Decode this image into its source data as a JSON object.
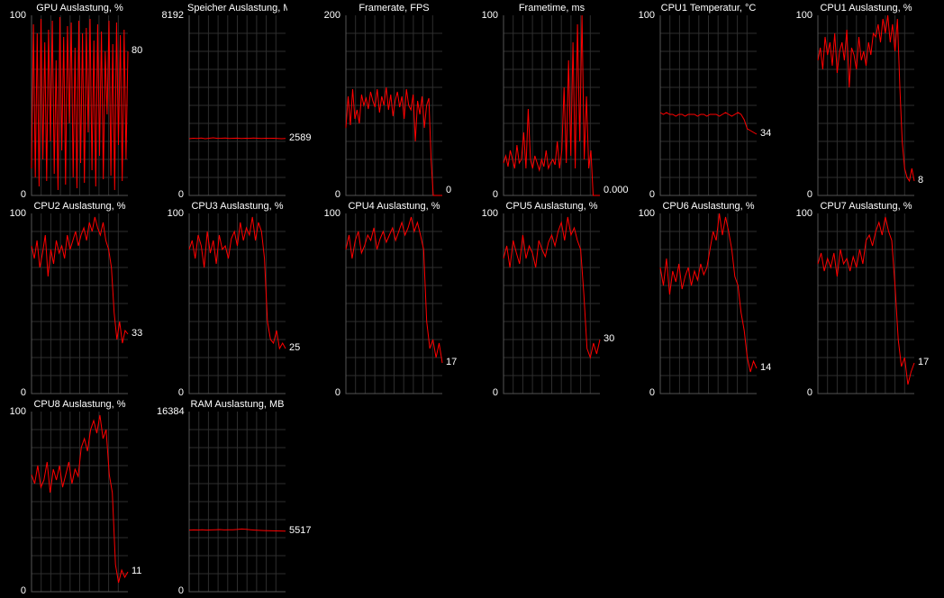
{
  "chart_data": [
    {
      "type": "line",
      "title": "GPU Auslastung, %",
      "ylim": [
        0,
        100
      ],
      "ymax_label": "100",
      "ymin_label": "0",
      "current": "80",
      "color": "#ff0000",
      "grid": true,
      "values": [
        15,
        95,
        10,
        90,
        5,
        98,
        20,
        85,
        8,
        92,
        30,
        97,
        12,
        75,
        3,
        99,
        25,
        88,
        6,
        94,
        40,
        96,
        10,
        82,
        4,
        97,
        18,
        90,
        7,
        93,
        35,
        98,
        14,
        86,
        5,
        95,
        22,
        91,
        9,
        80,
        45,
        97,
        11,
        84,
        3,
        96,
        28,
        89,
        8,
        92,
        20,
        80
      ]
    },
    {
      "type": "line",
      "title": "Speicher Auslastung, MB",
      "ylim": [
        0,
        8192
      ],
      "ymax_label": "8192",
      "ymin_label": "0",
      "current": "2589",
      "color": "#ff0000",
      "grid": true,
      "values": [
        2580,
        2600,
        2590,
        2610,
        2580,
        2600,
        2620,
        2595,
        2600,
        2610,
        2590,
        2600,
        2605,
        2590,
        2600,
        2595,
        2610,
        2600,
        2590,
        2600,
        2595,
        2600,
        2590,
        2580,
        2589
      ]
    },
    {
      "type": "line",
      "title": "Framerate, FPS",
      "ylim": [
        0,
        200
      ],
      "ymax_label": "200",
      "ymin_label": "0",
      "current": "0",
      "color": "#ff0000",
      "grid": true,
      "values": [
        75,
        110,
        78,
        118,
        85,
        95,
        80,
        112,
        100,
        108,
        96,
        115,
        105,
        98,
        118,
        92,
        110,
        100,
        120,
        95,
        112,
        88,
        105,
        115,
        98,
        110,
        85,
        118,
        100,
        95,
        112,
        60,
        105,
        90,
        110,
        75,
        100,
        108,
        40,
        0,
        0,
        0,
        0,
        0
      ]
    },
    {
      "type": "line",
      "title": "Frametime, ms",
      "ylim": [
        0,
        100
      ],
      "ymax_label": "100",
      "ymin_label": "0",
      "current": "0.000",
      "color": "#ff0000",
      "grid": true,
      "values": [
        18,
        22,
        16,
        25,
        20,
        15,
        28,
        18,
        20,
        35,
        15,
        48,
        20,
        15,
        22,
        18,
        14,
        20,
        16,
        25,
        15,
        18,
        20,
        17,
        30,
        15,
        25,
        60,
        18,
        75,
        22,
        85,
        15,
        95,
        30,
        100,
        20,
        55,
        15,
        25,
        0,
        0,
        0,
        0
      ]
    },
    {
      "type": "line",
      "title": "CPU1 Temperatur, °C",
      "ylim": [
        0,
        100
      ],
      "ymax_label": "100",
      "ymin_label": "0",
      "current": "34",
      "color": "#ff0000",
      "grid": true,
      "values": [
        46,
        45,
        46,
        45,
        45,
        44,
        45,
        45,
        44,
        45,
        45,
        45,
        44,
        45,
        45,
        44,
        45,
        45,
        45,
        44,
        45,
        46,
        45,
        44,
        45,
        46,
        45,
        42,
        37,
        36,
        35,
        34
      ]
    },
    {
      "type": "line",
      "title": "CPU1 Auslastung, %",
      "ylim": [
        0,
        100
      ],
      "ymax_label": "100",
      "ymin_label": "0",
      "current": "8",
      "color": "#ff0000",
      "grid": true,
      "values": [
        75,
        82,
        70,
        88,
        78,
        85,
        72,
        90,
        68,
        80,
        85,
        75,
        92,
        60,
        82,
        78,
        70,
        88,
        75,
        80,
        72,
        85,
        78,
        90,
        88,
        95,
        85,
        98,
        90,
        100,
        85,
        95,
        80,
        98,
        60,
        30,
        15,
        10,
        8,
        15,
        8
      ]
    },
    {
      "type": "line",
      "title": "CPU2 Auslastung, %",
      "ylim": [
        0,
        100
      ],
      "ymax_label": "100",
      "ymin_label": "0",
      "current": "33",
      "color": "#ff0000",
      "grid": true,
      "values": [
        82,
        75,
        85,
        70,
        78,
        88,
        65,
        80,
        72,
        85,
        78,
        82,
        75,
        88,
        80,
        85,
        90,
        82,
        88,
        92,
        85,
        95,
        90,
        98,
        92,
        88,
        95,
        85,
        80,
        70,
        45,
        30,
        40,
        28,
        35,
        33
      ]
    },
    {
      "type": "line",
      "title": "CPU3 Auslastung, %",
      "ylim": [
        0,
        100
      ],
      "ymax_label": "100",
      "ymin_label": "0",
      "current": "25",
      "color": "#ff0000",
      "grid": true,
      "values": [
        80,
        85,
        75,
        88,
        82,
        70,
        90,
        78,
        85,
        72,
        88,
        80,
        82,
        75,
        86,
        90,
        82,
        95,
        85,
        92,
        88,
        98,
        85,
        95,
        90,
        75,
        40,
        30,
        28,
        35,
        25,
        28,
        25
      ]
    },
    {
      "type": "line",
      "title": "CPU4 Auslastung, %",
      "ylim": [
        0,
        100
      ],
      "ymax_label": "100",
      "ymin_label": "0",
      "current": "17",
      "color": "#ff0000",
      "grid": true,
      "values": [
        80,
        88,
        75,
        85,
        90,
        78,
        82,
        88,
        85,
        92,
        80,
        86,
        90,
        84,
        88,
        92,
        85,
        90,
        95,
        88,
        92,
        98,
        90,
        95,
        88,
        80,
        40,
        25,
        30,
        20,
        28,
        17
      ]
    },
    {
      "type": "line",
      "title": "CPU5 Auslastung, %",
      "ylim": [
        0,
        100
      ],
      "ymax_label": "100",
      "ymin_label": "0",
      "current": "30",
      "color": "#ff0000",
      "grid": true,
      "values": [
        75,
        82,
        70,
        85,
        78,
        72,
        88,
        75,
        82,
        78,
        70,
        85,
        80,
        76,
        84,
        88,
        82,
        90,
        95,
        85,
        98,
        88,
        92,
        85,
        80,
        55,
        25,
        20,
        28,
        22,
        30
      ]
    },
    {
      "type": "line",
      "title": "CPU6 Auslastung, %",
      "ylim": [
        0,
        100
      ],
      "ymax_label": "100",
      "ymin_label": "0",
      "current": "14",
      "color": "#ff0000",
      "grid": true,
      "values": [
        70,
        60,
        75,
        55,
        68,
        62,
        72,
        58,
        65,
        70,
        60,
        68,
        63,
        72,
        66,
        70,
        80,
        90,
        85,
        100,
        88,
        98,
        90,
        80,
        65,
        60,
        45,
        35,
        20,
        12,
        18,
        14
      ]
    },
    {
      "type": "line",
      "title": "CPU7 Auslastung, %",
      "ylim": [
        0,
        100
      ],
      "ymax_label": "100",
      "ymin_label": "0",
      "current": "17",
      "color": "#ff0000",
      "grid": true,
      "values": [
        72,
        78,
        68,
        75,
        70,
        78,
        65,
        80,
        72,
        75,
        68,
        76,
        70,
        80,
        72,
        85,
        88,
        82,
        90,
        95,
        88,
        98,
        90,
        85,
        60,
        30,
        15,
        20,
        5,
        12,
        17
      ]
    },
    {
      "type": "line",
      "title": "CPU8 Auslastung, %",
      "ylim": [
        0,
        100
      ],
      "ymax_label": "100",
      "ymin_label": "0",
      "current": "11",
      "color": "#ff0000",
      "grid": true,
      "values": [
        65,
        60,
        70,
        58,
        62,
        72,
        55,
        68,
        62,
        70,
        58,
        65,
        72,
        60,
        68,
        64,
        80,
        85,
        78,
        90,
        95,
        88,
        98,
        85,
        90,
        65,
        55,
        15,
        5,
        12,
        8,
        11
      ]
    },
    {
      "type": "line",
      "title": "RAM Auslastung, MB",
      "ylim": [
        0,
        16384
      ],
      "ymax_label": "16384",
      "ymin_label": "0",
      "current": "5517",
      "color": "#ff0000",
      "grid": true,
      "values": [
        5600,
        5620,
        5610,
        5630,
        5600,
        5620,
        5640,
        5650,
        5620,
        5630,
        5640,
        5660,
        5700,
        5680,
        5640,
        5600,
        5580,
        5560,
        5550,
        5540,
        5530,
        5520,
        5517
      ]
    }
  ]
}
